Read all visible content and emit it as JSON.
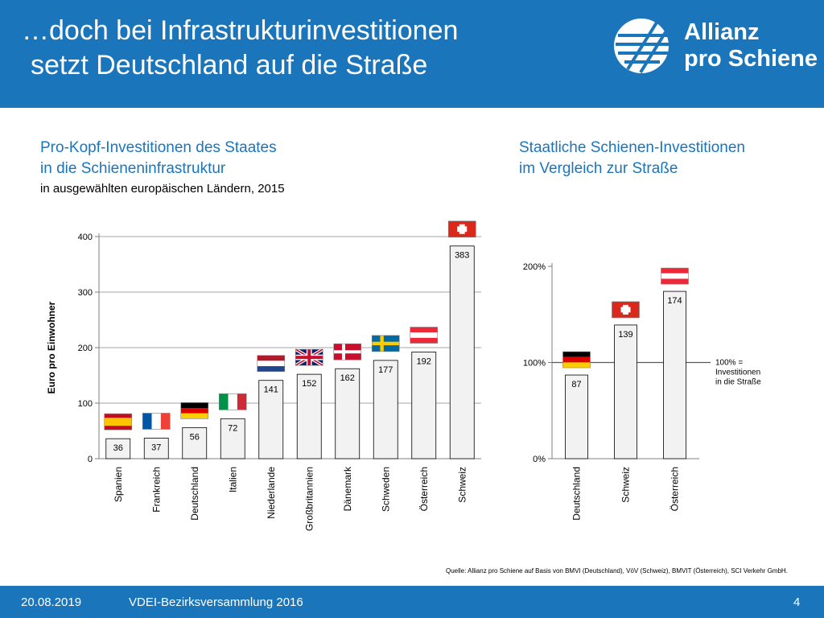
{
  "header": {
    "title_line1": "…doch bei Infrastrukturinvestitionen",
    "title_line2": "setzt Deutschland auf die Straße",
    "logo_line1": "Allianz",
    "logo_line2": "pro Schiene"
  },
  "left": {
    "title_line1": "Pro-Kopf-Investitionen des Staates",
    "title_line2": "in die Schieneninfrastruktur",
    "subtitle": "in ausgewählten europäischen Ländern, 2015"
  },
  "right": {
    "title_line1": "Staatliche Schienen-Investitionen",
    "title_line2": "im Vergleich zur Straße"
  },
  "chart_data": [
    {
      "type": "bar",
      "categories": [
        "Spanien",
        "Frankreich",
        "Deutschland",
        "Italien",
        "Niederlande",
        "Großbritannien",
        "Dänemark",
        "Schweden",
        "Österreich",
        "Schweiz"
      ],
      "values": [
        36,
        37,
        56,
        72,
        141,
        152,
        162,
        177,
        192,
        383
      ],
      "flags": [
        "es",
        "fr",
        "de",
        "it",
        "nl",
        "gb",
        "dk",
        "se",
        "at",
        "ch"
      ],
      "ylabel": "Euro pro Einwohner",
      "ylim": [
        0,
        400
      ],
      "yticks": [
        0,
        100,
        200,
        300,
        400
      ],
      "grid": true,
      "bar_color": "#f2f2f2"
    },
    {
      "type": "bar",
      "categories": [
        "Deutschland",
        "Schweiz",
        "Österreich"
      ],
      "values": [
        87,
        139,
        174
      ],
      "flags": [
        "de",
        "ch",
        "at"
      ],
      "ylim": [
        0,
        200
      ],
      "yticks": [
        0,
        100,
        200
      ],
      "ytick_labels": [
        "0%",
        "100%",
        "200%"
      ],
      "reference_line": 100,
      "reference_label": [
        "100% =",
        "Investitionen",
        "in die Straße"
      ],
      "bar_color": "#f2f2f2"
    }
  ],
  "source": "Quelle: Allianz pro Schiene auf Basis von BMVI (Deutschland), VöV (Schweiz), BMVIT (Österreich), SCI Verkehr GmbH.",
  "footer": {
    "date": "20.08.2019",
    "event": "VDEI-Bezirksversammlung 2016",
    "page": "4"
  },
  "colors": {
    "brand_blue": "#1b75bb",
    "bar_fill": "#f2f2f2",
    "grid": "#a6a6a6"
  }
}
